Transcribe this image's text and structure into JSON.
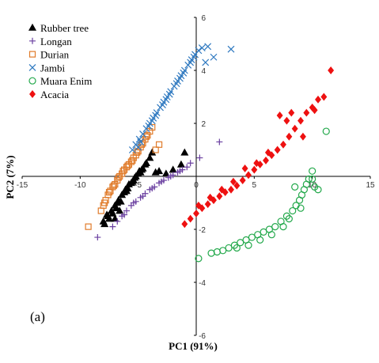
{
  "chart_data": {
    "type": "scatter",
    "panel_label": "(a)",
    "xlabel": "PC1 (91%)",
    "ylabel": "PC2 (7%)",
    "xlim": [
      -15,
      15
    ],
    "ylim": [
      -6,
      6
    ],
    "xticks": [
      -15,
      -10,
      -5,
      0,
      5,
      10,
      15
    ],
    "yticks": [
      -6,
      -4,
      -2,
      0,
      2,
      4,
      6
    ],
    "axes_cross_at_origin": true,
    "grid": false,
    "legend_position": "top-left",
    "series": [
      {
        "name": "Rubber tree",
        "marker": "triangle",
        "filled": true,
        "color": "#000000",
        "points": [
          [
            -7.9,
            -1.8
          ],
          [
            -7.6,
            -1.5
          ],
          [
            -7.3,
            -1.3
          ],
          [
            -7.0,
            -1.1
          ],
          [
            -6.7,
            -0.9
          ],
          [
            -6.4,
            -0.7
          ],
          [
            -6.1,
            -0.5
          ],
          [
            -5.8,
            -0.3
          ],
          [
            -5.5,
            -0.2
          ],
          [
            -5.2,
            0.0
          ],
          [
            -4.9,
            0.2
          ],
          [
            -4.6,
            0.3
          ],
          [
            -4.3,
            0.5
          ],
          [
            -4.0,
            0.7
          ],
          [
            -3.8,
            0.9
          ],
          [
            -7.5,
            -1.6
          ],
          [
            -7.2,
            -1.4
          ],
          [
            -6.9,
            -1.2
          ],
          [
            -6.5,
            -0.95
          ],
          [
            -6.2,
            -0.6
          ],
          [
            -5.9,
            -0.45
          ],
          [
            -5.6,
            -0.25
          ],
          [
            -5.3,
            -0.05
          ],
          [
            -5.0,
            0.1
          ],
          [
            -4.7,
            0.25
          ],
          [
            -4.4,
            0.45
          ],
          [
            -8.0,
            -1.7
          ],
          [
            -7.7,
            -1.45
          ],
          [
            -6.8,
            -1.0
          ],
          [
            -6.0,
            -0.55
          ],
          [
            -5.4,
            -0.15
          ],
          [
            -4.8,
            0.15
          ],
          [
            -3.5,
            0.15
          ],
          [
            -3.2,
            0.2
          ],
          [
            -2.6,
            0.1
          ],
          [
            -2.0,
            0.25
          ],
          [
            -1.3,
            0.45
          ],
          [
            -1.0,
            0.9
          ],
          [
            -7.0,
            -1.6
          ],
          [
            -6.6,
            -1.3
          ]
        ]
      },
      {
        "name": "Longan",
        "marker": "plus",
        "filled": false,
        "color": "#6a3fa0",
        "points": [
          [
            -8.5,
            -2.3
          ],
          [
            -7.2,
            -1.9
          ],
          [
            -6.8,
            -1.7
          ],
          [
            -6.4,
            -1.5
          ],
          [
            -6.0,
            -1.3
          ],
          [
            -5.6,
            -1.1
          ],
          [
            -5.2,
            -0.95
          ],
          [
            -4.8,
            -0.8
          ],
          [
            -4.4,
            -0.65
          ],
          [
            -4.0,
            -0.5
          ],
          [
            -3.6,
            -0.4
          ],
          [
            -3.2,
            -0.25
          ],
          [
            -2.8,
            -0.15
          ],
          [
            -2.4,
            -0.05
          ],
          [
            -2.0,
            0.05
          ],
          [
            -1.6,
            0.15
          ],
          [
            -1.2,
            0.25
          ],
          [
            -0.8,
            0.35
          ],
          [
            -0.5,
            0.5
          ],
          [
            0.3,
            0.7
          ],
          [
            2.0,
            1.3
          ],
          [
            -6.2,
            -1.45
          ],
          [
            -5.4,
            -1.0
          ],
          [
            -4.6,
            -0.75
          ],
          [
            -3.8,
            -0.45
          ],
          [
            -3.0,
            -0.2
          ],
          [
            -2.2,
            0.0
          ],
          [
            -1.4,
            0.2
          ]
        ]
      },
      {
        "name": "Durian",
        "marker": "square",
        "filled": false,
        "color": "#e07b2a",
        "points": [
          [
            -9.3,
            -1.9
          ],
          [
            -8.2,
            -1.3
          ],
          [
            -8.0,
            -1.1
          ],
          [
            -7.8,
            -0.9
          ],
          [
            -7.6,
            -0.7
          ],
          [
            -7.4,
            -0.55
          ],
          [
            -7.2,
            -0.4
          ],
          [
            -7.0,
            -0.3
          ],
          [
            -6.8,
            -0.15
          ],
          [
            -6.6,
            0.0
          ],
          [
            -6.4,
            0.1
          ],
          [
            -6.2,
            0.25
          ],
          [
            -6.0,
            0.35
          ],
          [
            -5.8,
            0.45
          ],
          [
            -5.6,
            0.55
          ],
          [
            -5.4,
            0.7
          ],
          [
            -5.2,
            0.8
          ],
          [
            -5.0,
            0.95
          ],
          [
            -4.8,
            1.1
          ],
          [
            -4.6,
            1.25
          ],
          [
            -4.4,
            1.4
          ],
          [
            -4.2,
            1.55
          ],
          [
            -4.0,
            1.7
          ],
          [
            -3.8,
            1.85
          ],
          [
            -3.5,
            1.0
          ],
          [
            -3.2,
            1.2
          ],
          [
            -7.9,
            -1.0
          ],
          [
            -7.5,
            -0.6
          ],
          [
            -7.1,
            -0.35
          ],
          [
            -6.7,
            -0.05
          ],
          [
            -6.3,
            0.2
          ],
          [
            -5.9,
            0.4
          ],
          [
            -5.5,
            0.6
          ],
          [
            -5.1,
            0.9
          ],
          [
            -4.7,
            1.2
          ],
          [
            -4.3,
            1.5
          ]
        ]
      },
      {
        "name": "Jambi",
        "marker": "x",
        "filled": false,
        "color": "#2f79c0",
        "points": [
          [
            -5.5,
            1.0
          ],
          [
            -5.2,
            1.2
          ],
          [
            -4.9,
            1.4
          ],
          [
            -4.6,
            1.6
          ],
          [
            -4.3,
            1.8
          ],
          [
            -4.0,
            2.0
          ],
          [
            -3.7,
            2.2
          ],
          [
            -3.4,
            2.4
          ],
          [
            -3.1,
            2.6
          ],
          [
            -2.8,
            2.8
          ],
          [
            -2.5,
            3.0
          ],
          [
            -2.2,
            3.2
          ],
          [
            -1.9,
            3.4
          ],
          [
            -1.6,
            3.6
          ],
          [
            -1.3,
            3.8
          ],
          [
            -1.0,
            4.0
          ],
          [
            -0.7,
            4.2
          ],
          [
            -0.4,
            4.4
          ],
          [
            -0.1,
            4.6
          ],
          [
            0.2,
            4.75
          ],
          [
            0.5,
            4.85
          ],
          [
            1.0,
            4.9
          ],
          [
            1.5,
            4.5
          ],
          [
            3.0,
            4.8
          ],
          [
            -4.8,
            1.3
          ],
          [
            -4.1,
            1.9
          ],
          [
            -3.5,
            2.3
          ],
          [
            -2.9,
            2.7
          ],
          [
            -2.3,
            3.1
          ],
          [
            -1.7,
            3.5
          ],
          [
            -1.1,
            3.9
          ],
          [
            -0.5,
            4.3
          ],
          [
            -5.0,
            1.1
          ],
          [
            -3.8,
            2.1
          ],
          [
            -2.6,
            2.9
          ],
          [
            -1.4,
            3.7
          ],
          [
            -0.2,
            4.5
          ],
          [
            0.8,
            4.3
          ]
        ]
      },
      {
        "name": "Muara Enim",
        "marker": "circle",
        "filled": false,
        "color": "#22a84a",
        "points": [
          [
            0.2,
            -3.1
          ],
          [
            1.3,
            -2.9
          ],
          [
            1.8,
            -2.85
          ],
          [
            2.3,
            -2.8
          ],
          [
            2.8,
            -2.7
          ],
          [
            3.3,
            -2.6
          ],
          [
            3.8,
            -2.5
          ],
          [
            4.3,
            -2.4
          ],
          [
            4.8,
            -2.3
          ],
          [
            5.3,
            -2.2
          ],
          [
            5.8,
            -2.1
          ],
          [
            6.3,
            -2.0
          ],
          [
            6.8,
            -1.9
          ],
          [
            7.3,
            -1.7
          ],
          [
            7.8,
            -1.5
          ],
          [
            8.3,
            -1.3
          ],
          [
            8.6,
            -1.1
          ],
          [
            8.9,
            -0.9
          ],
          [
            9.1,
            -0.7
          ],
          [
            9.3,
            -0.5
          ],
          [
            9.5,
            -0.3
          ],
          [
            9.7,
            -0.1
          ],
          [
            10.0,
            0.2
          ],
          [
            10.2,
            -0.4
          ],
          [
            8.5,
            -0.4
          ],
          [
            7.5,
            -1.9
          ],
          [
            6.5,
            -2.2
          ],
          [
            5.5,
            -2.4
          ],
          [
            4.5,
            -2.6
          ],
          [
            3.5,
            -2.7
          ],
          [
            9.0,
            -1.2
          ],
          [
            8.0,
            -1.6
          ],
          [
            11.2,
            1.7
          ],
          [
            10.5,
            -0.5
          ],
          [
            10.0,
            -0.1
          ]
        ]
      },
      {
        "name": "Acacia",
        "marker": "diamond",
        "filled": true,
        "color": "#ee1111",
        "points": [
          [
            -1.0,
            -1.8
          ],
          [
            -0.5,
            -1.6
          ],
          [
            0.0,
            -1.4
          ],
          [
            0.5,
            -1.2
          ],
          [
            1.0,
            -1.05
          ],
          [
            1.5,
            -0.9
          ],
          [
            2.0,
            -0.75
          ],
          [
            2.5,
            -0.6
          ],
          [
            3.0,
            -0.5
          ],
          [
            3.5,
            -0.35
          ],
          [
            4.0,
            -0.15
          ],
          [
            4.5,
            0.05
          ],
          [
            5.0,
            0.25
          ],
          [
            5.5,
            0.45
          ],
          [
            6.0,
            0.6
          ],
          [
            6.5,
            0.8
          ],
          [
            7.0,
            1.0
          ],
          [
            7.5,
            1.2
          ],
          [
            8.0,
            1.5
          ],
          [
            8.5,
            1.8
          ],
          [
            9.0,
            2.1
          ],
          [
            9.5,
            2.4
          ],
          [
            10.0,
            2.6
          ],
          [
            10.5,
            2.9
          ],
          [
            11.0,
            3.0
          ],
          [
            11.6,
            4.0
          ],
          [
            7.2,
            2.3
          ],
          [
            7.8,
            2.1
          ],
          [
            8.2,
            2.4
          ],
          [
            9.2,
            1.5
          ],
          [
            10.2,
            2.5
          ],
          [
            4.2,
            0.3
          ],
          [
            3.2,
            -0.2
          ],
          [
            2.2,
            -0.5
          ],
          [
            1.2,
            -0.8
          ],
          [
            0.2,
            -1.1
          ],
          [
            6.2,
            0.9
          ],
          [
            5.2,
            0.5
          ]
        ]
      }
    ]
  }
}
